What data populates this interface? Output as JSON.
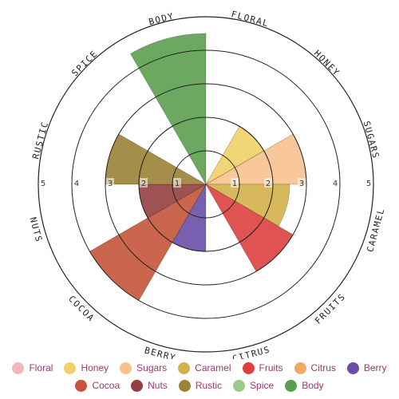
{
  "chart_data": {
    "type": "polar-area",
    "title": "",
    "rmax": 5,
    "ticks": [
      1,
      2,
      3,
      4,
      5
    ],
    "grid": true,
    "legend_position": "bottom",
    "categories": [
      {
        "name": "Floral",
        "label": "FLORAL",
        "value": 0,
        "color": "#f2b8b8"
      },
      {
        "name": "Honey",
        "label": "HONEY",
        "value": 2.0,
        "color": "#f0d068"
      },
      {
        "name": "Sugars",
        "label": "SUGARS",
        "value": 3.0,
        "color": "#f7c28f"
      },
      {
        "name": "Caramel",
        "label": "CARAMEL",
        "value": 2.5,
        "color": "#d4b04a"
      },
      {
        "name": "Fruits",
        "label": "FRUITS",
        "value": 3.0,
        "color": "#dd4040"
      },
      {
        "name": "Citrus",
        "label": "CITRUS",
        "value": 0,
        "color": "#eeaa66"
      },
      {
        "name": "Berry",
        "label": "BERRY",
        "value": 2.0,
        "color": "#6a4ea6"
      },
      {
        "name": "Cocoa",
        "label": "COCOA",
        "value": 4.0,
        "color": "#c4553a"
      },
      {
        "name": "Nuts",
        "label": "NUTS",
        "value": 2.0,
        "color": "#953f3f"
      },
      {
        "name": "Rustic",
        "label": "RUSTIC",
        "value": 3.0,
        "color": "#9b8235"
      },
      {
        "name": "Spice",
        "label": "SPICE",
        "value": 0,
        "color": "#9cc98a"
      },
      {
        "name": "Body",
        "label": "BODY",
        "value": 4.5,
        "color": "#5c9e4f"
      }
    ]
  },
  "legend": {
    "rows": [
      [
        "Floral",
        "Honey",
        "Sugars",
        "Caramel",
        "Fruits",
        "Citrus",
        "Berry"
      ],
      [
        "Cocoa",
        "Nuts",
        "Rustic",
        "Spice",
        "Body"
      ]
    ]
  }
}
